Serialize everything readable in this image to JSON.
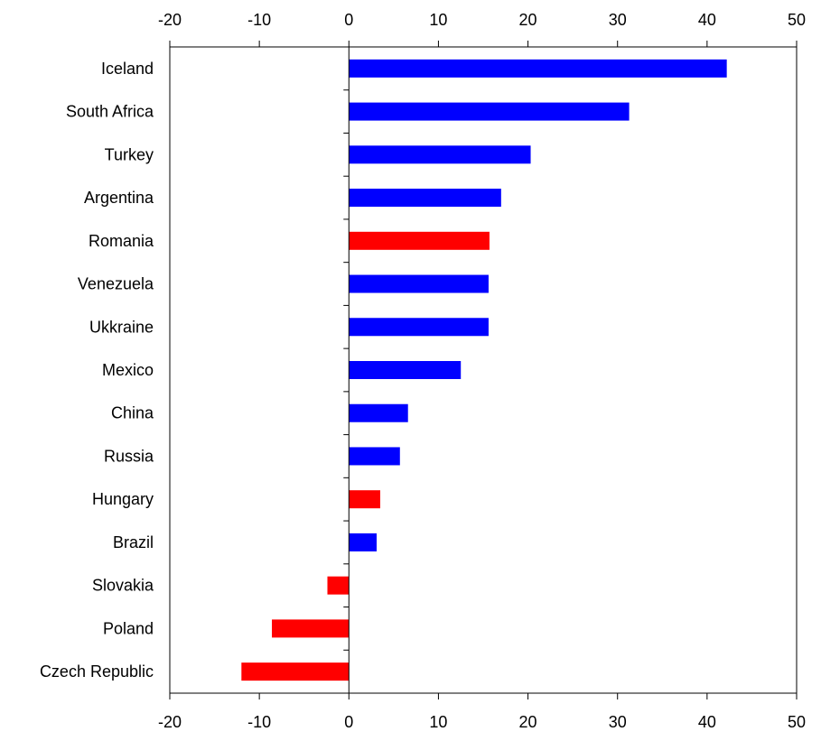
{
  "chart_data": {
    "type": "bar",
    "orientation": "horizontal",
    "title": "",
    "xlabel": "",
    "ylabel": "",
    "xlim": [
      -20,
      50
    ],
    "x_ticks": [
      -20,
      -10,
      0,
      10,
      20,
      30,
      40,
      50
    ],
    "x_tick_labels": [
      "-20",
      "-10",
      "0",
      "10",
      "20",
      "30",
      "40",
      "50"
    ],
    "tick_labels_top": true,
    "tick_labels_bottom": true,
    "grid": false,
    "legend": "none",
    "colors": {
      "highlight": "#ff0000",
      "default": "#0000ff"
    },
    "categories": [
      "Iceland",
      "South Africa",
      "Turkey",
      "Argentina",
      "Romania",
      "Venezuela",
      "Ukkraine",
      "Mexico",
      "China",
      "Russia",
      "Hungary",
      "Brazil",
      "Slovakia",
      "Poland",
      "Czech Republic"
    ],
    "values": [
      42.2,
      31.3,
      20.3,
      17.0,
      15.7,
      15.6,
      15.6,
      12.5,
      6.6,
      5.7,
      3.5,
      3.1,
      -2.4,
      -8.6,
      -12.0
    ],
    "bar_colors": [
      "#0000ff",
      "#0000ff",
      "#0000ff",
      "#0000ff",
      "#ff0000",
      "#0000ff",
      "#0000ff",
      "#0000ff",
      "#0000ff",
      "#0000ff",
      "#ff0000",
      "#0000ff",
      "#ff0000",
      "#ff0000",
      "#ff0000"
    ]
  }
}
